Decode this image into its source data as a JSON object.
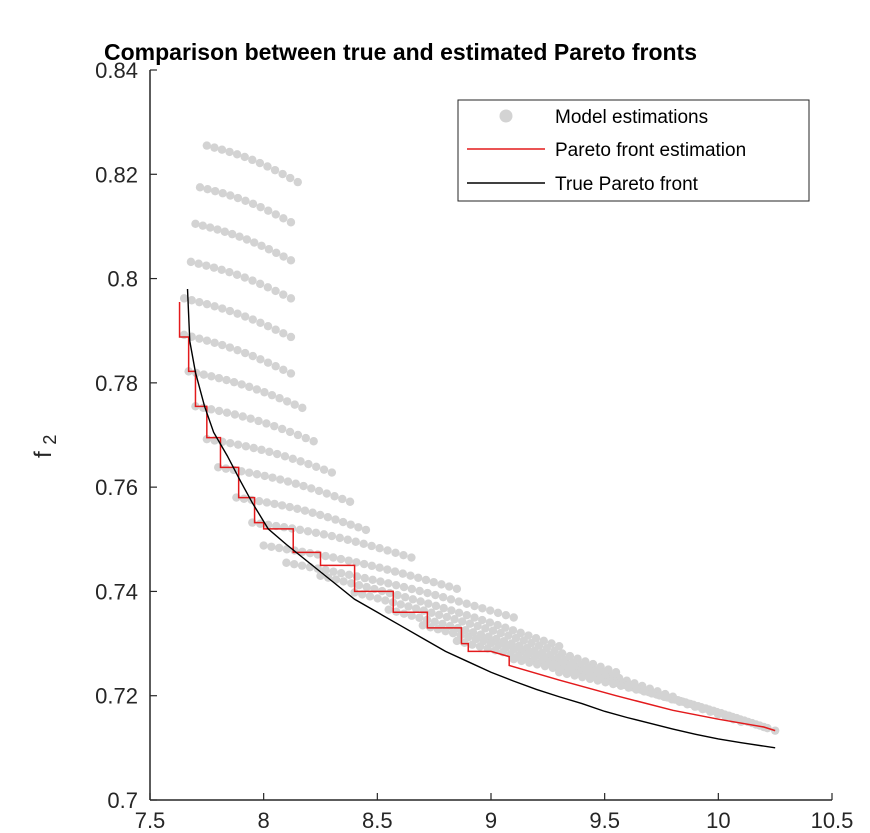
{
  "chart_data": {
    "type": "scatter",
    "title": "Comparison between true and estimated Pareto fronts",
    "xlabel": "",
    "ylabel": "f",
    "ylabel_subscript": "2",
    "xlim": [
      7.5,
      10.5
    ],
    "ylim": [
      0.7,
      0.84
    ],
    "xticks": [
      7.5,
      8,
      8.5,
      9,
      9.5,
      10,
      10.5
    ],
    "xtick_labels": [
      "7.5",
      "8",
      "8.5",
      "9",
      "9.5",
      "10",
      "10.5"
    ],
    "yticks": [
      0.7,
      0.72,
      0.74,
      0.76,
      0.78,
      0.8,
      0.82,
      0.84
    ],
    "ytick_labels": [
      "0.7",
      "0.72",
      "0.74",
      "0.76",
      "0.78",
      "0.8",
      "0.82",
      "0.84"
    ],
    "legend_position": "top-right",
    "grid": false,
    "series": [
      {
        "name": "Model estimations",
        "kind": "points",
        "color": "#d3d3d3",
        "curves": [
          {
            "x_start": 7.75,
            "x_end": 8.15,
            "y_start": 0.8255,
            "y_end": 0.8185
          },
          {
            "x_start": 7.72,
            "x_end": 8.12,
            "y_start": 0.8175,
            "y_end": 0.8108
          },
          {
            "x_start": 7.7,
            "x_end": 8.12,
            "y_start": 0.8105,
            "y_end": 0.8035
          },
          {
            "x_start": 7.68,
            "x_end": 8.12,
            "y_start": 0.8032,
            "y_end": 0.7962
          },
          {
            "x_start": 7.65,
            "x_end": 8.12,
            "y_start": 0.7962,
            "y_end": 0.7888
          },
          {
            "x_start": 7.65,
            "x_end": 8.12,
            "y_start": 0.7892,
            "y_end": 0.7818
          },
          {
            "x_start": 7.67,
            "x_end": 8.17,
            "y_start": 0.7822,
            "y_end": 0.7752
          },
          {
            "x_start": 7.7,
            "x_end": 8.22,
            "y_start": 0.7755,
            "y_end": 0.7688
          },
          {
            "x_start": 7.75,
            "x_end": 8.3,
            "y_start": 0.7692,
            "y_end": 0.7628
          },
          {
            "x_start": 7.8,
            "x_end": 8.38,
            "y_start": 0.7638,
            "y_end": 0.7572
          },
          {
            "x_start": 7.88,
            "x_end": 8.45,
            "y_start": 0.758,
            "y_end": 0.7518
          },
          {
            "x_start": 7.95,
            "x_end": 8.65,
            "y_start": 0.7532,
            "y_end": 0.7465
          },
          {
            "x_start": 8.0,
            "x_end": 8.85,
            "y_start": 0.7488,
            "y_end": 0.7405
          },
          {
            "x_start": 8.1,
            "x_end": 9.1,
            "y_start": 0.7455,
            "y_end": 0.735
          },
          {
            "x_start": 8.25,
            "x_end": 9.3,
            "y_start": 0.743,
            "y_end": 0.7295
          },
          {
            "x_start": 8.4,
            "x_end": 9.55,
            "y_start": 0.7398,
            "y_end": 0.7245
          },
          {
            "x_start": 8.55,
            "x_end": 9.8,
            "y_start": 0.7365,
            "y_end": 0.7198
          },
          {
            "x_start": 8.7,
            "x_end": 10.0,
            "y_start": 0.7335,
            "y_end": 0.7165
          },
          {
            "x_start": 8.85,
            "x_end": 10.1,
            "y_start": 0.7305,
            "y_end": 0.715
          },
          {
            "x_start": 9.1,
            "x_end": 10.2,
            "y_start": 0.727,
            "y_end": 0.714
          },
          {
            "x_start": 9.3,
            "x_end": 10.25,
            "y_start": 0.7245,
            "y_end": 0.7133
          }
        ]
      },
      {
        "name": "Pareto front estimation",
        "kind": "step",
        "color": "#e31a1c",
        "points": [
          [
            7.63,
            0.7955
          ],
          [
            7.63,
            0.7888
          ],
          [
            7.67,
            0.7888
          ],
          [
            7.67,
            0.7822
          ],
          [
            7.7,
            0.7822
          ],
          [
            7.7,
            0.7755
          ],
          [
            7.75,
            0.7755
          ],
          [
            7.75,
            0.7695
          ],
          [
            7.81,
            0.7695
          ],
          [
            7.81,
            0.7638
          ],
          [
            7.89,
            0.7638
          ],
          [
            7.89,
            0.758
          ],
          [
            7.96,
            0.758
          ],
          [
            7.96,
            0.7532
          ],
          [
            8.0,
            0.7532
          ],
          [
            8.0,
            0.752
          ],
          [
            8.13,
            0.752
          ],
          [
            8.13,
            0.7475
          ],
          [
            8.25,
            0.7475
          ],
          [
            8.25,
            0.745
          ],
          [
            8.4,
            0.745
          ],
          [
            8.4,
            0.74
          ],
          [
            8.57,
            0.74
          ],
          [
            8.57,
            0.736
          ],
          [
            8.72,
            0.736
          ],
          [
            8.72,
            0.733
          ],
          [
            8.87,
            0.733
          ],
          [
            8.87,
            0.73
          ],
          [
            8.9,
            0.73
          ],
          [
            8.9,
            0.7285
          ],
          [
            9.0,
            0.7285
          ],
          [
            9.08,
            0.7275
          ],
          [
            9.08,
            0.7258
          ],
          [
            9.3,
            0.723
          ],
          [
            9.55,
            0.72
          ],
          [
            9.8,
            0.7172
          ],
          [
            10.0,
            0.7155
          ],
          [
            10.2,
            0.714
          ],
          [
            10.25,
            0.7133
          ]
        ]
      },
      {
        "name": "True Pareto front",
        "kind": "line",
        "color": "#000000",
        "points": [
          [
            7.665,
            0.798
          ],
          [
            7.675,
            0.788
          ],
          [
            7.7,
            0.782
          ],
          [
            7.74,
            0.7755
          ],
          [
            7.78,
            0.7705
          ],
          [
            7.84,
            0.766
          ],
          [
            7.9,
            0.761
          ],
          [
            7.95,
            0.757
          ],
          [
            8.02,
            0.752
          ],
          [
            8.1,
            0.749
          ],
          [
            8.2,
            0.7455
          ],
          [
            8.3,
            0.742
          ],
          [
            8.4,
            0.7385
          ],
          [
            8.5,
            0.736
          ],
          [
            8.6,
            0.7335
          ],
          [
            8.7,
            0.731
          ],
          [
            8.8,
            0.7285
          ],
          [
            8.9,
            0.7265
          ],
          [
            9.0,
            0.7245
          ],
          [
            9.1,
            0.7228
          ],
          [
            9.2,
            0.7212
          ],
          [
            9.3,
            0.7198
          ],
          [
            9.4,
            0.7185
          ],
          [
            9.5,
            0.717
          ],
          [
            9.6,
            0.7158
          ],
          [
            9.7,
            0.7147
          ],
          [
            9.8,
            0.7136
          ],
          [
            9.9,
            0.7126
          ],
          [
            10.0,
            0.7117
          ],
          [
            10.1,
            0.711
          ],
          [
            10.25,
            0.71
          ]
        ]
      }
    ]
  }
}
